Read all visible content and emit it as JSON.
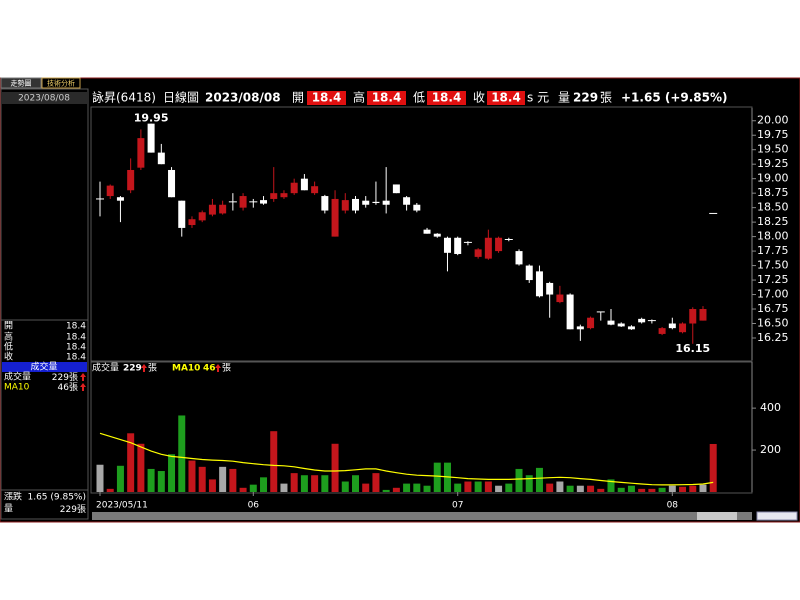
{
  "tabs": [
    "走勢圖",
    "技術分析"
  ],
  "header": {
    "name": "詠昇(6418)",
    "period": "日線圖",
    "date": "2023/08/08",
    "open_label": "開",
    "high_label": "高",
    "low_label": "低",
    "close_label": "收",
    "currency": "s 元",
    "volume_label": "量",
    "unit": "張",
    "change": "+1.65 (+9.85%)"
  },
  "side": {
    "change_label": "漲跌",
    "change": "1.65 (9.85%)"
  },
  "chart_data": [
    {
      "type": "candlestick",
      "open": [
        18.65,
        18.7,
        18.68,
        18.8,
        19.19,
        19.95,
        19.45,
        19.15,
        18.62,
        18.2,
        18.28,
        18.38,
        18.4,
        18.6,
        18.5,
        18.6,
        18.63,
        18.65,
        18.68,
        18.75,
        19.0,
        18.75,
        18.7,
        18.0,
        18.45,
        18.65,
        18.62,
        18.6,
        18.62,
        18.9,
        18.68,
        18.55,
        18.12,
        18.05,
        17.98,
        17.98,
        17.9,
        17.65,
        17.62,
        17.75,
        17.95,
        17.75,
        17.5,
        17.4,
        17.2,
        16.87,
        17.0,
        16.45,
        16.42,
        16.7,
        16.55,
        16.5,
        16.45,
        16.58,
        16.55,
        16.32,
        16.5,
        16.35,
        16.5,
        16.55,
        18.4
      ],
      "high": [
        18.95,
        18.9,
        18.7,
        19.35,
        19.85,
        19.95,
        19.6,
        19.2,
        18.62,
        18.35,
        18.45,
        18.65,
        18.62,
        18.75,
        18.75,
        18.65,
        18.7,
        19.2,
        18.8,
        19.0,
        19.08,
        18.95,
        18.72,
        18.8,
        18.75,
        18.7,
        18.7,
        18.95,
        19.2,
        18.9,
        18.7,
        18.58,
        18.15,
        18.06,
        18.0,
        18.0,
        17.92,
        17.8,
        18.12,
        18.0,
        17.98,
        17.78,
        17.52,
        17.5,
        17.22,
        17.15,
        17.02,
        16.48,
        16.62,
        16.7,
        16.75,
        16.52,
        16.47,
        16.6,
        16.57,
        16.44,
        16.6,
        16.52,
        16.78,
        16.8,
        18.4
      ],
      "low": [
        18.35,
        18.65,
        18.25,
        18.75,
        19.15,
        19.45,
        19.25,
        18.68,
        18.0,
        18.15,
        18.25,
        18.35,
        18.38,
        18.45,
        18.45,
        18.5,
        18.55,
        18.6,
        18.65,
        18.72,
        18.8,
        18.72,
        18.4,
        18.0,
        18.4,
        18.4,
        18.5,
        18.55,
        18.4,
        18.75,
        18.45,
        18.42,
        18.05,
        17.98,
        17.4,
        17.68,
        17.85,
        17.62,
        17.6,
        17.72,
        17.92,
        17.5,
        17.2,
        16.95,
        16.6,
        16.85,
        16.4,
        16.2,
        16.4,
        16.55,
        16.47,
        16.44,
        16.39,
        16.5,
        16.5,
        16.3,
        16.4,
        16.33,
        16.15,
        16.55,
        18.4
      ],
      "close": [
        18.65,
        18.88,
        18.62,
        19.15,
        19.7,
        19.45,
        19.25,
        18.68,
        18.15,
        18.3,
        18.42,
        18.55,
        18.55,
        18.6,
        18.7,
        18.6,
        18.57,
        18.75,
        18.75,
        18.93,
        18.8,
        18.87,
        18.45,
        18.65,
        18.63,
        18.45,
        18.55,
        18.58,
        18.55,
        18.75,
        18.55,
        18.45,
        18.05,
        18.0,
        17.72,
        17.7,
        17.9,
        17.78,
        17.98,
        17.98,
        17.95,
        17.52,
        17.25,
        16.97,
        17.0,
        17.0,
        16.4,
        16.4,
        16.6,
        16.7,
        16.48,
        16.45,
        16.4,
        16.52,
        16.55,
        16.42,
        16.42,
        16.5,
        16.75,
        16.75,
        18.4
      ],
      "up_color": "#c4161c",
      "down_color": "#ffffff",
      "ylim": [
        15.87,
        20.22
      ],
      "yticks": [
        16.25,
        {
          "value": 16.5,
          "label": "16.50"
        },
        16.75,
        {
          "value": 17,
          "label": "17.00"
        },
        17.25,
        {
          "value": 17.5,
          "label": "17.50"
        },
        17.75,
        {
          "value": 18,
          "label": "18.00"
        },
        18.25,
        {
          "value": 18.5,
          "label": "18.50"
        },
        18.75,
        {
          "value": 19,
          "label": "19.00"
        },
        19.25,
        {
          "value": 19.5,
          "label": "19.50"
        },
        19.75,
        {
          "value": 20,
          "label": "20.00"
        }
      ]
    },
    {
      "type": "bar",
      "categories": [
        "2023/05/11",
        null,
        null,
        null,
        null,
        null,
        null,
        null,
        null,
        null,
        null,
        null,
        null,
        null,
        null,
        "06",
        null,
        null,
        null,
        null,
        null,
        null,
        null,
        null,
        null,
        null,
        null,
        null,
        null,
        null,
        null,
        null,
        null,
        null,
        null,
        "07",
        null,
        null,
        null,
        null,
        null,
        null,
        null,
        null,
        null,
        null,
        null,
        null,
        null,
        null,
        null,
        null,
        null,
        null,
        null,
        null,
        "08",
        null,
        null,
        null,
        null
      ],
      "series": [
        {
          "name": "成交量",
          "values": [
            130,
            15,
            125,
            280,
            230,
            110,
            100,
            180,
            365,
            150,
            120,
            60,
            120,
            110,
            20,
            35,
            70,
            290,
            40,
            90,
            80,
            80,
            80,
            230,
            50,
            80,
            40,
            90,
            10,
            20,
            40,
            40,
            30,
            140,
            140,
            40,
            50,
            50,
            50,
            30,
            40,
            110,
            80,
            115,
            40,
            50,
            30,
            30,
            30,
            15,
            60,
            20,
            30,
            15,
            15,
            20,
            30,
            25,
            30,
            35,
            229
          ]
        },
        {
          "name": "MA10",
          "color": "#ffff00",
          "values": [
            280,
            265,
            250,
            235,
            215,
            195,
            180,
            170,
            165,
            160,
            155,
            152,
            150,
            147,
            140,
            135,
            130,
            127,
            125,
            120,
            112,
            105,
            100,
            100,
            102,
            106,
            110,
            110,
            100,
            92,
            85,
            80,
            78,
            76,
            72,
            68,
            64,
            62,
            60,
            60,
            60,
            62,
            64,
            66,
            68,
            70,
            68,
            64,
            60,
            55,
            50,
            46,
            42,
            38,
            35,
            34,
            34,
            35,
            36,
            38,
            46
          ]
        }
      ],
      "colors": {
        "up": "#c4161c",
        "down": "#1e9e1e",
        "flat": "#a8a8a8"
      },
      "ylim": [
        0,
        620
      ],
      "yticks": [
        200,
        400
      ]
    }
  ]
}
